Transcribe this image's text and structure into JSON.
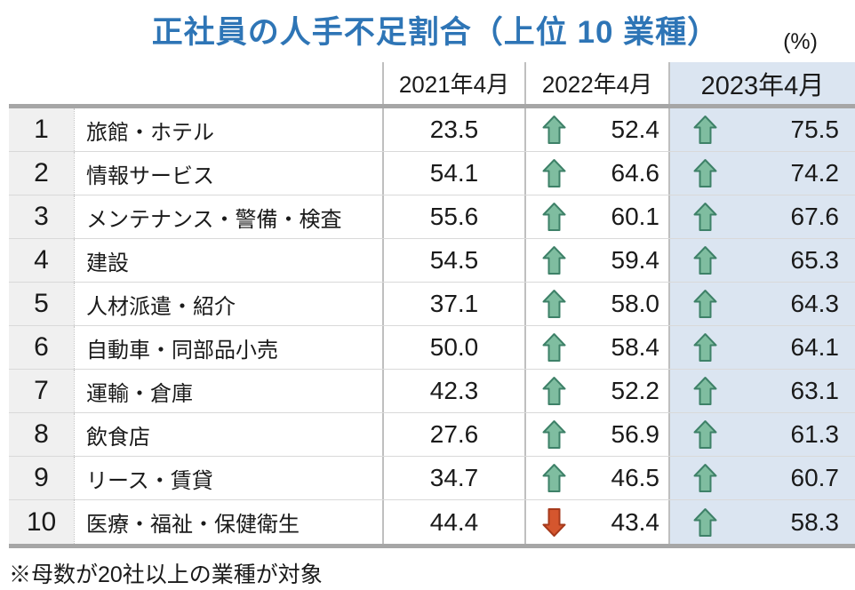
{
  "chart_data": {
    "type": "table",
    "title": "正社員の人手不足割合（上位 10 業種）",
    "unit": "(%)",
    "columns": [
      "2021年4月",
      "2022年4月",
      "2023年4月"
    ],
    "rows": [
      {
        "rank": 1,
        "industry": "旅館・ホテル",
        "values": [
          23.5,
          52.4,
          75.5
        ],
        "trends": [
          "none",
          "up",
          "up"
        ]
      },
      {
        "rank": 2,
        "industry": "情報サービス",
        "values": [
          54.1,
          64.6,
          74.2
        ],
        "trends": [
          "none",
          "up",
          "up"
        ]
      },
      {
        "rank": 3,
        "industry": "メンテナンス・警備・検査",
        "values": [
          55.6,
          60.1,
          67.6
        ],
        "trends": [
          "none",
          "up",
          "up"
        ]
      },
      {
        "rank": 4,
        "industry": "建設",
        "values": [
          54.5,
          59.4,
          65.3
        ],
        "trends": [
          "none",
          "up",
          "up"
        ]
      },
      {
        "rank": 5,
        "industry": "人材派遣・紹介",
        "values": [
          37.1,
          58.0,
          64.3
        ],
        "trends": [
          "none",
          "up",
          "up"
        ]
      },
      {
        "rank": 6,
        "industry": "自動車・同部品小売",
        "values": [
          50.0,
          58.4,
          64.1
        ],
        "trends": [
          "none",
          "up",
          "up"
        ]
      },
      {
        "rank": 7,
        "industry": "運輸・倉庫",
        "values": [
          42.3,
          52.2,
          63.1
        ],
        "trends": [
          "none",
          "up",
          "up"
        ]
      },
      {
        "rank": 8,
        "industry": "飲食店",
        "values": [
          27.6,
          56.9,
          61.3
        ],
        "trends": [
          "none",
          "up",
          "up"
        ]
      },
      {
        "rank": 9,
        "industry": "リース・賃貸",
        "values": [
          34.7,
          46.5,
          60.7
        ],
        "trends": [
          "none",
          "up",
          "up"
        ]
      },
      {
        "rank": 10,
        "industry": "医療・福祉・保健衛生",
        "values": [
          44.4,
          43.4,
          58.3
        ],
        "trends": [
          "none",
          "down",
          "up"
        ]
      }
    ],
    "footnote": "※母数が20社以上の業種が対象",
    "layout": {
      "legend": "none",
      "grid": "table-borders",
      "highlight_column": "2023年4月"
    }
  },
  "icons": {
    "up": "up-arrow-icon",
    "down": "down-arrow-icon"
  },
  "colors": {
    "title_blue": "#2e75b6",
    "highlight_column_bg": "#dbe5f1",
    "rank_column_bg": "#f0f0f0",
    "thick_border": "#a6a6a6",
    "column_border": "#bfbfbf",
    "row_border": "#d9d9d9",
    "arrow_up_fill": "#7fbda0",
    "arrow_up_stroke": "#3e8168",
    "arrow_down_fill": "#d5562e",
    "arrow_down_stroke": "#a63a1c"
  }
}
